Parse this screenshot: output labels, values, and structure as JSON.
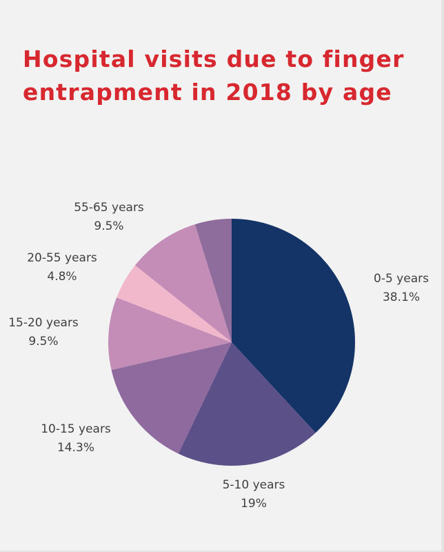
{
  "title_lines": [
    "Hospital visits due to finger",
    "entrapment in 2018 by age"
  ],
  "chart_data": {
    "type": "pie",
    "title": "Hospital visits due to finger entrapment in 2018 by age",
    "start_angle_deg": 0,
    "direction": "clockwise",
    "slices": [
      {
        "label": "0-5 years",
        "value_label": "38.1%",
        "value": 38.1,
        "color": "#143468"
      },
      {
        "label": "5-10 years",
        "value_label": "19%",
        "value": 19.0,
        "color": "#5b5088"
      },
      {
        "label": "10-15 years",
        "value_label": "14.3%",
        "value": 14.3,
        "color": "#8f6a9f"
      },
      {
        "label": "15-20 years",
        "value_label": "9.5%",
        "value": 9.5,
        "color": "#c38db7"
      },
      {
        "label": "20-55 years",
        "value_label": "4.8%",
        "value": 4.8,
        "color": "#f1b8cb"
      },
      {
        "label": "55-65 years",
        "value_label": "9.5%",
        "value": 9.5,
        "color": "#c38db7"
      },
      {
        "label": "",
        "value_label": "",
        "value": 4.8,
        "color": "#8e6c9c"
      }
    ]
  }
}
